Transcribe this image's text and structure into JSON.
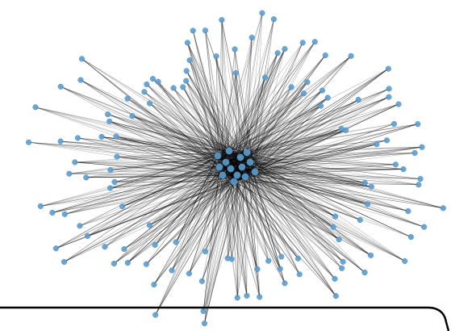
{
  "graph": {
    "layout": "spring",
    "hub_node_count": 14,
    "peripheral_node_count": 124,
    "node_color": "#5b9fd0",
    "node_edge_color": "#4a87b8",
    "edge_color": "#000000",
    "background": "#ffffff",
    "frame_color": "#000000"
  }
}
